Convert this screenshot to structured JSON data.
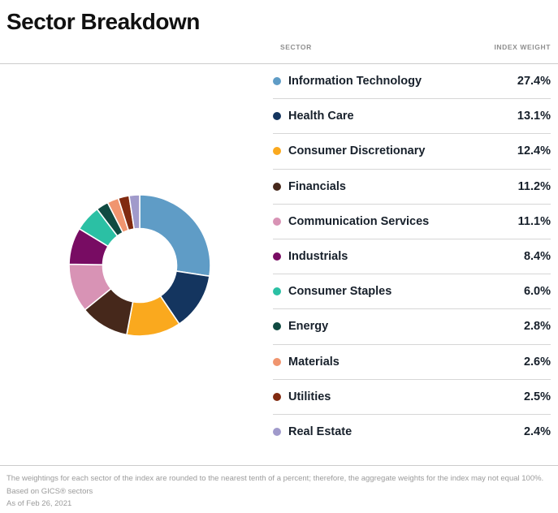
{
  "page": {
    "title": "Sector Breakdown"
  },
  "table": {
    "sector_header": "SECTOR",
    "weight_header": "INDEX WEIGHT"
  },
  "chart_data": {
    "type": "pie",
    "subtype": "donut",
    "title": "Sector Breakdown",
    "start_angle_deg": 0,
    "direction": "clockwise",
    "inner_radius_ratio": 0.52,
    "legend_position": "right-table",
    "unit": "%",
    "categories": [
      "Information Technology",
      "Health Care",
      "Consumer Discretionary",
      "Financials",
      "Communication Services",
      "Industrials",
      "Consumer Staples",
      "Energy",
      "Materials",
      "Utilities",
      "Real Estate"
    ],
    "values": [
      27.4,
      13.1,
      12.4,
      11.2,
      11.1,
      8.4,
      6.0,
      2.8,
      2.6,
      2.5,
      2.4
    ],
    "colors": [
      "#5F9CC6",
      "#14355F",
      "#FAA91E",
      "#46281B",
      "#D893B5",
      "#780C63",
      "#2BC0A4",
      "#104A41",
      "#F0956F",
      "#812A10",
      "#A09ACB"
    ]
  },
  "legend": {
    "rows": [
      {
        "label": "Information Technology",
        "value": "27.4%",
        "color": "#5F9CC6"
      },
      {
        "label": "Health Care",
        "value": "13.1%",
        "color": "#14355F"
      },
      {
        "label": "Consumer Discretionary",
        "value": "12.4%",
        "color": "#FAA91E"
      },
      {
        "label": "Financials",
        "value": "11.2%",
        "color": "#46281B"
      },
      {
        "label": "Communication Services",
        "value": "11.1%",
        "color": "#D893B5"
      },
      {
        "label": "Industrials",
        "value": "8.4%",
        "color": "#780C63"
      },
      {
        "label": "Consumer Staples",
        "value": "6.0%",
        "color": "#2BC0A4"
      },
      {
        "label": "Energy",
        "value": "2.8%",
        "color": "#104A41"
      },
      {
        "label": "Materials",
        "value": "2.6%",
        "color": "#F0956F"
      },
      {
        "label": "Utilities",
        "value": "2.5%",
        "color": "#812A10"
      },
      {
        "label": "Real Estate",
        "value": "2.4%",
        "color": "#A09ACB"
      }
    ]
  },
  "footer": {
    "note": "The weightings for each sector of the index are rounded to the nearest tenth of a percent; therefore, the aggregate weights for the index may not equal 100%.",
    "source": "Based on GICS® sectors",
    "as_of": "As of Feb 26, 2021"
  }
}
